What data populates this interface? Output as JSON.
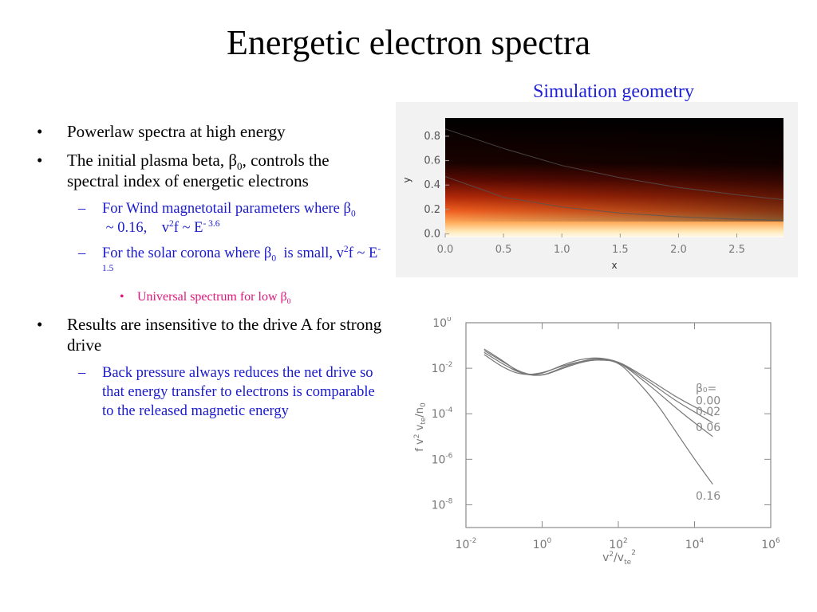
{
  "title": "Energetic electron spectra",
  "sim_caption": "Simulation geometry",
  "bullets": {
    "b1": "Powerlaw spectra at high energy",
    "b2_pre": "The initial plasma beta, ",
    "b2_beta": "β",
    "b2_sub": "0",
    "b2_post": ", controls the spectral index of energetic electrons",
    "s1_pre": "For Wind magnetotail parameters where ",
    "s1_beta": "β",
    "s1_sub": "0",
    "s1_mid": " ~ 0.16,    v",
    "s1_sup1": "2",
    "s1_mid2": "f ~ E",
    "s1_sup2": "- 3.6",
    "s2_pre": "For the solar corona where ",
    "s2_beta": "β",
    "s2_sub": "0",
    "s2_mid": "  is small, v",
    "s2_sup1": "2",
    "s2_mid2": "f ~ E",
    "s2_sup2": "-1.5",
    "t1_pre": "Universal spectrum for low ",
    "t1_beta": "β",
    "t1_sub": "0",
    "b3": "Results are insensitive to the drive A for strong drive",
    "s3": "Back pressure always reduces the net drive so that energy transfer to electrons is comparable to the released magnetic energy",
    "bullet_glyph": "•",
    "dash_glyph": "–"
  },
  "colors": {
    "subbullet": "#1a1acc",
    "subsub": "#e0157a",
    "caption": "#1f1fd6",
    "axis": "#8a8a8a",
    "curve": "#777777"
  },
  "chart_data": [
    {
      "type": "heatmap",
      "name": "simulation geometry",
      "x_label": "x",
      "y_label": "y",
      "x_ticks": [
        "0.0",
        "0.5",
        "1.0",
        "1.5",
        "2.0",
        "2.5"
      ],
      "y_ticks": [
        "0.0",
        "0.2",
        "0.4",
        "0.6",
        "0.8"
      ],
      "xlim": [
        0.0,
        2.9
      ],
      "ylim": [
        -0.03,
        0.95
      ],
      "colormap": "black-red-orange-yellow-white (hot)",
      "contour_lines": [
        {
          "x": [
            0.0,
            0.5,
            1.0,
            1.5,
            2.0,
            2.5,
            2.9
          ],
          "y": [
            0.47,
            0.3,
            0.22,
            0.17,
            0.14,
            0.12,
            0.11
          ]
        },
        {
          "x": [
            0.0,
            0.5,
            1.0,
            1.5,
            2.0,
            2.5,
            2.9
          ],
          "y": [
            0.86,
            0.7,
            0.56,
            0.46,
            0.38,
            0.32,
            0.28
          ]
        }
      ]
    },
    {
      "type": "line",
      "name": "energetic electron spectra",
      "x_label": "v²/v_te²",
      "y_label": "f v² v_te / n₀",
      "x_scale": "log",
      "y_scale": "log",
      "xlim": [
        0.01,
        1000000
      ],
      "ylim": [
        1e-09,
        1
      ],
      "x_ticks": [
        {
          "base": "10",
          "exp": "-2"
        },
        {
          "base": "10",
          "exp": "0"
        },
        {
          "base": "10",
          "exp": "2"
        },
        {
          "base": "10",
          "exp": "4"
        },
        {
          "base": "10",
          "exp": "6"
        }
      ],
      "y_ticks": [
        {
          "base": "10",
          "exp": "0"
        },
        {
          "base": "10",
          "exp": "-2"
        },
        {
          "base": "10",
          "exp": "-4"
        },
        {
          "base": "10",
          "exp": "-6"
        },
        {
          "base": "10",
          "exp": "-8"
        }
      ],
      "legend_title": "β₀=",
      "series": [
        {
          "name": "0.00",
          "x": [
            0.03,
            0.1,
            0.3,
            1,
            3,
            10,
            30,
            100,
            300,
            1000,
            3000,
            10000,
            30000
          ],
          "y": [
            0.07,
            0.02,
            0.005,
            0.0055,
            0.013,
            0.025,
            0.03,
            0.02,
            0.007,
            0.002,
            0.0006,
            0.0002,
            8e-05
          ]
        },
        {
          "name": "0.02",
          "x": [
            0.03,
            0.1,
            0.3,
            1,
            3,
            10,
            30,
            100,
            300,
            1000,
            3000,
            10000,
            30000
          ],
          "y": [
            0.06,
            0.018,
            0.006,
            0.0045,
            0.01,
            0.02,
            0.028,
            0.02,
            0.006,
            0.0015,
            0.0004,
            0.00012,
            4e-05
          ]
        },
        {
          "name": "0.06",
          "x": [
            0.03,
            0.1,
            0.3,
            1,
            3,
            10,
            30,
            100,
            300,
            1000,
            3000,
            10000,
            30000
          ],
          "y": [
            0.05,
            0.014,
            0.0055,
            0.0045,
            0.009,
            0.018,
            0.025,
            0.02,
            0.005,
            0.001,
            0.0002,
            4e-05,
            1e-05
          ]
        },
        {
          "name": "0.16",
          "x": [
            0.03,
            0.1,
            0.3,
            1,
            3,
            10,
            30,
            100,
            300,
            1000,
            3000,
            10000,
            30000
          ],
          "y": [
            0.04,
            0.01,
            0.005,
            0.006,
            0.012,
            0.02,
            0.024,
            0.02,
            0.003,
            0.0003,
            2e-05,
            1e-06,
            8e-08
          ]
        }
      ]
    }
  ]
}
